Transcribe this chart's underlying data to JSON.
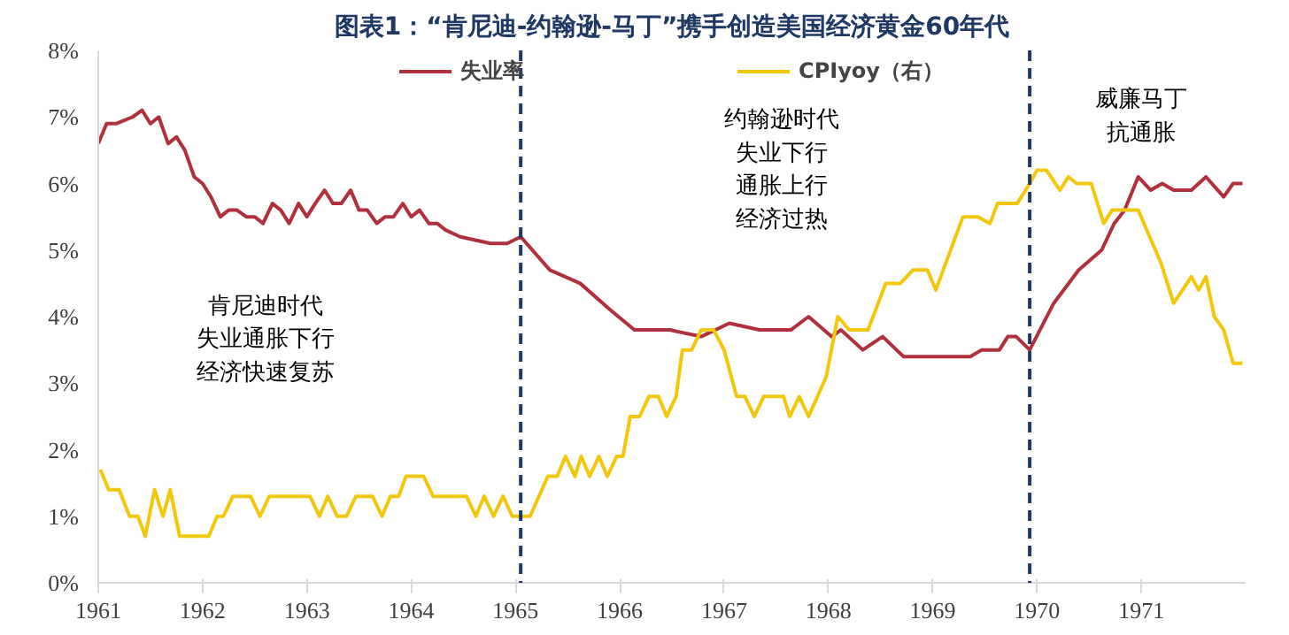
{
  "chart_data": {
    "type": "line",
    "title": "图表1：“肯尼迪-约翰逊-马丁”携手创造美国经济黄金60年代",
    "series": [
      {
        "name": "失业率",
        "color": "#b0303e",
        "x": [
          1961.0,
          1961.08,
          1961.17,
          1961.33,
          1961.42,
          1961.5,
          1961.58,
          1961.67,
          1961.75,
          1961.83,
          1961.92,
          1962.0,
          1962.08,
          1962.17,
          1962.25,
          1962.33,
          1962.42,
          1962.5,
          1962.58,
          1962.67,
          1962.75,
          1962.83,
          1962.92,
          1963.0,
          1963.08,
          1963.17,
          1963.25,
          1963.33,
          1963.42,
          1963.5,
          1963.58,
          1963.67,
          1963.75,
          1963.83,
          1963.92,
          1964.0,
          1964.08,
          1964.17,
          1964.25,
          1964.33,
          1964.47,
          1964.76,
          1964.92,
          1965.05,
          1965.33,
          1965.62,
          1965.91,
          1966.14,
          1966.48,
          1966.78,
          1967.05,
          1967.34,
          1967.64,
          1967.81,
          1968.03,
          1968.12,
          1968.33,
          1968.52,
          1968.72,
          1969.36,
          1969.47,
          1969.64,
          1969.72,
          1969.8,
          1969.93,
          1970.16,
          1970.4,
          1970.62,
          1970.74,
          1970.84,
          1970.97,
          1971.09,
          1971.2,
          1971.31,
          1971.48,
          1971.62,
          1971.79,
          1971.88,
          1971.97
        ],
        "values": [
          6.6,
          6.9,
          6.9,
          7.0,
          7.1,
          6.9,
          7.0,
          6.6,
          6.7,
          6.5,
          6.1,
          6.0,
          5.8,
          5.5,
          5.6,
          5.6,
          5.5,
          5.5,
          5.4,
          5.7,
          5.6,
          5.4,
          5.7,
          5.5,
          5.7,
          5.9,
          5.7,
          5.7,
          5.9,
          5.6,
          5.6,
          5.4,
          5.5,
          5.5,
          5.7,
          5.5,
          5.6,
          5.4,
          5.4,
          5.3,
          5.2,
          5.1,
          5.1,
          5.2,
          4.7,
          4.5,
          4.1,
          3.8,
          3.8,
          3.7,
          3.9,
          3.8,
          3.8,
          4.0,
          3.7,
          3.8,
          3.5,
          3.7,
          3.4,
          3.4,
          3.5,
          3.5,
          3.7,
          3.7,
          3.5,
          4.2,
          4.7,
          5.0,
          5.4,
          5.6,
          6.1,
          5.9,
          6.0,
          5.9,
          5.9,
          6.1,
          5.8,
          6.0,
          6.0
        ]
      },
      {
        "name": "CPIyoy（右）",
        "color": "#f2c80f",
        "x": [
          1961.02,
          1961.1,
          1961.2,
          1961.3,
          1961.38,
          1961.45,
          1961.54,
          1961.62,
          1961.69,
          1961.78,
          1962.06,
          1962.14,
          1962.2,
          1962.29,
          1962.46,
          1962.55,
          1962.64,
          1963.03,
          1963.12,
          1963.2,
          1963.29,
          1963.38,
          1963.47,
          1963.63,
          1963.72,
          1963.8,
          1963.88,
          1963.95,
          1964.12,
          1964.21,
          1964.53,
          1964.62,
          1964.7,
          1964.79,
          1964.88,
          1964.97,
          1965.14,
          1965.31,
          1965.4,
          1965.48,
          1965.57,
          1965.63,
          1965.71,
          1965.8,
          1965.88,
          1965.97,
          1966.03,
          1966.1,
          1966.19,
          1966.28,
          1966.37,
          1966.45,
          1966.54,
          1966.6,
          1966.69,
          1966.78,
          1966.9,
          1967.0,
          1967.12,
          1967.2,
          1967.29,
          1967.38,
          1967.57,
          1967.63,
          1967.72,
          1967.81,
          1967.98,
          1968.09,
          1968.2,
          1968.38,
          1968.55,
          1968.69,
          1968.81,
          1968.95,
          1969.03,
          1969.29,
          1969.43,
          1969.55,
          1969.62,
          1969.81,
          1969.93,
          1970.0,
          1970.09,
          1970.22,
          1970.3,
          1970.38,
          1970.52,
          1970.64,
          1970.72,
          1970.97,
          1971.19,
          1971.31,
          1971.48,
          1971.55,
          1971.62,
          1971.7,
          1971.79,
          1971.88,
          1971.97
        ],
        "values": [
          1.7,
          1.4,
          1.4,
          1.0,
          1.0,
          0.7,
          1.4,
          1.0,
          1.4,
          0.7,
          0.7,
          1.0,
          1.0,
          1.3,
          1.3,
          1.0,
          1.3,
          1.3,
          1.0,
          1.3,
          1.0,
          1.0,
          1.3,
          1.3,
          1.0,
          1.3,
          1.3,
          1.6,
          1.6,
          1.3,
          1.3,
          1.0,
          1.3,
          1.0,
          1.3,
          1.0,
          1.0,
          1.6,
          1.6,
          1.9,
          1.6,
          1.9,
          1.6,
          1.9,
          1.6,
          1.9,
          1.9,
          2.5,
          2.5,
          2.8,
          2.8,
          2.5,
          2.8,
          3.5,
          3.5,
          3.8,
          3.8,
          3.5,
          2.8,
          2.8,
          2.5,
          2.8,
          2.8,
          2.5,
          2.8,
          2.5,
          3.1,
          4.0,
          3.8,
          3.8,
          4.5,
          4.5,
          4.7,
          4.7,
          4.4,
          5.5,
          5.5,
          5.4,
          5.7,
          5.7,
          6.0,
          6.2,
          6.2,
          5.9,
          6.1,
          6.0,
          6.0,
          5.4,
          5.6,
          5.6,
          4.8,
          4.2,
          4.6,
          4.4,
          4.6,
          4.0,
          3.8,
          3.3,
          3.3
        ]
      }
    ],
    "xlim": [
      1961,
      1972
    ],
    "xticks": [
      1961,
      1962,
      1963,
      1964,
      1965,
      1966,
      1967,
      1968,
      1969,
      1970,
      1971
    ],
    "ylim": [
      0,
      8
    ],
    "yticks": [
      {
        "value": 0,
        "label": "0%"
      },
      {
        "value": 1,
        "label": "1%"
      },
      {
        "value": 2,
        "label": "2%"
      },
      {
        "value": 3,
        "label": "3%"
      },
      {
        "value": 4,
        "label": "4%"
      },
      {
        "value": 5,
        "label": "5%"
      },
      {
        "value": 6,
        "label": "6%"
      },
      {
        "value": 7,
        "label": "7%"
      },
      {
        "value": 8,
        "label": "8%"
      }
    ],
    "ref_lines": [
      {
        "axis": "x",
        "value": 1965.05,
        "color": "#1f3864",
        "line_style": "dashed"
      },
      {
        "axis": "x",
        "value": 1969.93,
        "color": "#1f3864",
        "line_style": "dashed"
      }
    ],
    "annotations": [
      "肯尼迪时代",
      "失业通胀下行",
      "经济快速复苏",
      "约翰逊时代",
      "失业下行",
      "通胀上行",
      "经济过热",
      "威廉马丁",
      "抗通胀"
    ],
    "legend": "top",
    "grid": false,
    "marker": "none",
    "line_style": "solid"
  }
}
